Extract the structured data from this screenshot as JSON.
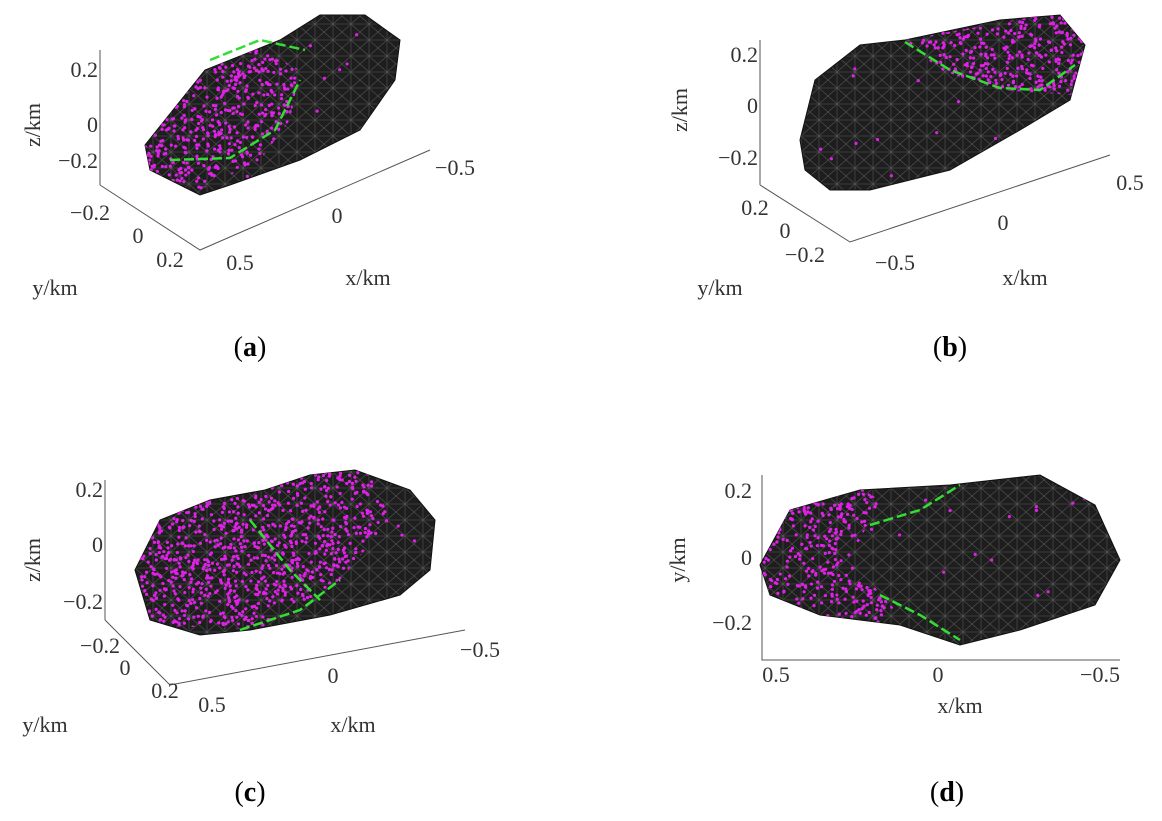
{
  "panels": [
    {
      "label": [
        "(",
        "a",
        ")"
      ],
      "xlabel": "x/km",
      "ylabel": "y/km",
      "zlabel": "z/km",
      "xticks": [
        "0.5",
        "0",
        "−0.5"
      ],
      "yticks": [
        "−0.2",
        "0",
        "0.2"
      ],
      "zticks": [
        "0.2",
        "0",
        "−0.2"
      ]
    },
    {
      "label": [
        "(",
        "b",
        ")"
      ],
      "xlabel": "x/km",
      "ylabel": "y/km",
      "zlabel": "z/km",
      "xticks": [
        "−0.5",
        "0",
        "0.5"
      ],
      "yticks": [
        "0.2",
        "0",
        "−0.2"
      ],
      "zticks": [
        "0.2",
        "0",
        "−0.2"
      ]
    },
    {
      "label": [
        "(",
        "c",
        ")"
      ],
      "xlabel": "x/km",
      "ylabel": "y/km",
      "zlabel": "z/km",
      "xticks": [
        "0.5",
        "0",
        "−0.5"
      ],
      "yticks": [
        "−0.2",
        "0",
        "0.2"
      ],
      "zticks": [
        "0.2",
        "0",
        "−0.2"
      ]
    },
    {
      "label": [
        "(",
        "d",
        ")"
      ],
      "xlabel": "x/km",
      "ylabel": "y/km",
      "xticks": [
        "0.5",
        "0",
        "−0.5"
      ],
      "yticks": [
        "0.2",
        "0",
        "−0.2"
      ]
    }
  ]
}
